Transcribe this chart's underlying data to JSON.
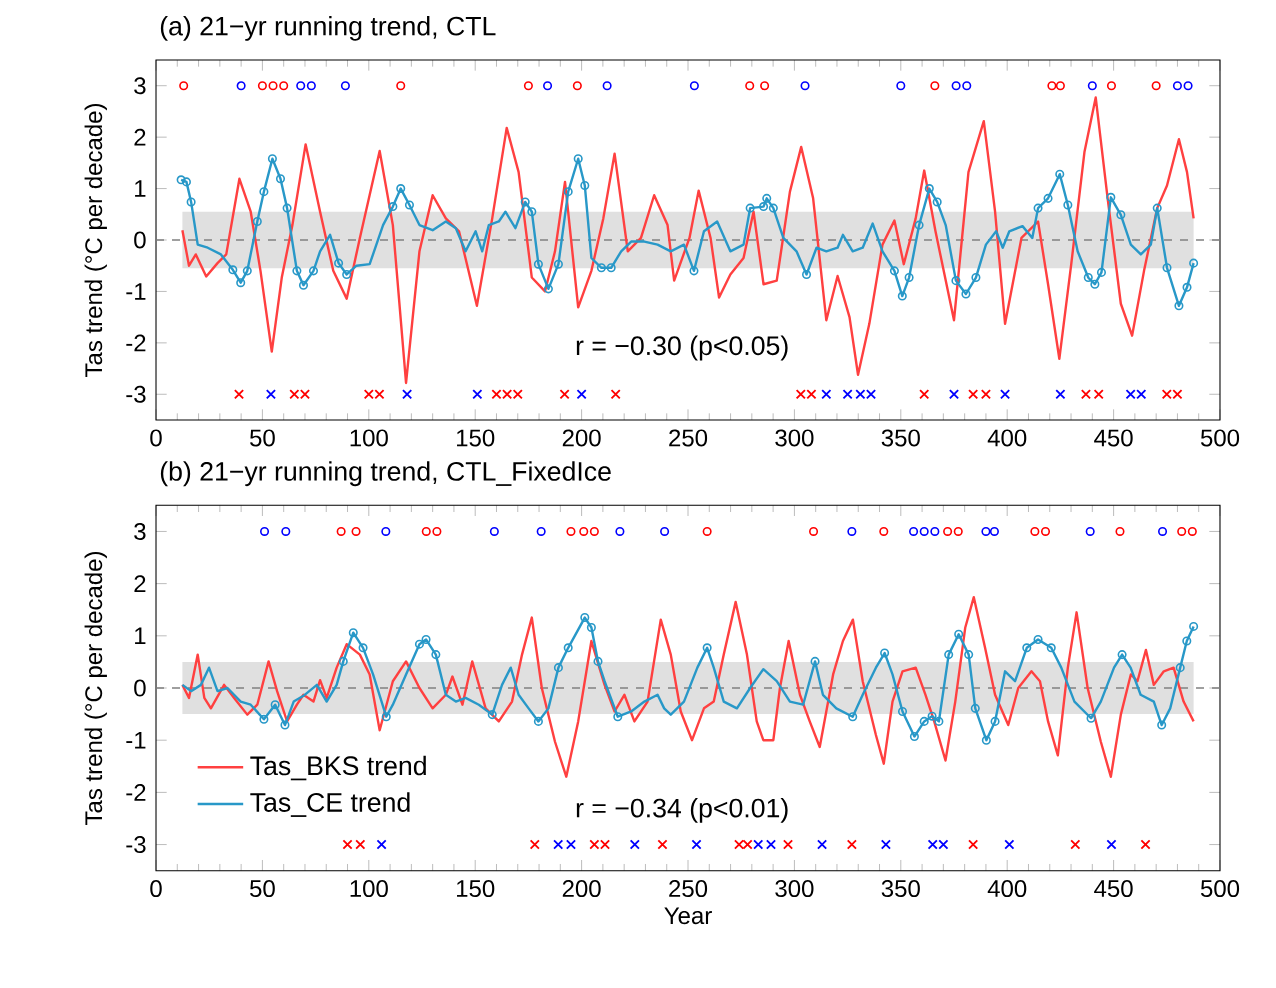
{
  "chart_data": [
    {
      "type": "line",
      "title": "(a) 21−yr running trend, CTL",
      "ylabel": "Tas trend (°C per decade)",
      "xlim": [
        0,
        500
      ],
      "ylim": [
        -3.5,
        3.5
      ],
      "xticks": [
        0,
        50,
        100,
        150,
        200,
        250,
        300,
        350,
        400,
        450,
        500
      ],
      "yticks": [
        -3,
        -2,
        -1,
        0,
        1,
        2,
        3
      ],
      "annotations": [
        "r = −0.30 (p<0.05)"
      ],
      "ref_lines": [
        {
          "axis": "y",
          "value": 0,
          "color": "#808080",
          "line_style": "dashed"
        }
      ],
      "bands": [
        {
          "axis": "y",
          "from": -0.55,
          "to": 0.55,
          "color": "#e0e0e0"
        }
      ],
      "series": [
        {
          "marker": "none",
          "color": "#ff4040",
          "x": [
            12.4,
            15.5,
            18.7,
            23.6,
            28.9,
            33.0,
            39.2,
            44.5,
            49.1,
            54.4,
            59.1,
            64.1,
            70.3,
            77.1,
            83.3,
            89.6,
            95.8,
            105.1,
            111.3,
            117.5,
            123.8,
            130.0,
            136.2,
            142.4,
            150.8,
            158.0,
            164.8,
            170.4,
            176.6,
            182.8,
            187.5,
            192.2,
            198.4,
            204.6,
            210.2,
            215.5,
            221.7,
            227.9,
            234.1,
            240.4,
            243.5,
            250.7,
            255.0,
            260.6,
            264.6,
            269.9,
            276.1,
            280.8,
            285.5,
            291.7,
            297.9,
            303.2,
            308.8,
            315.0,
            320.3,
            325.9,
            329.9,
            335.2,
            341.4,
            347.0,
            351.4,
            357.0,
            361.0,
            366.3,
            375.0,
            381.8,
            389.0,
            394.3,
            399.0,
            406.7,
            414.5,
            419.2,
            424.5,
            430.1,
            436.3,
            441.6,
            447.2,
            453.4,
            458.7,
            464.3,
            470.5,
            475.1,
            480.7,
            484.5,
            487.6
          ],
          "values": [
            0.19,
            -0.5,
            -0.28,
            -0.71,
            -0.45,
            -0.28,
            1.19,
            0.55,
            -0.6,
            -2.17,
            -0.73,
            0.29,
            1.86,
            0.55,
            -0.6,
            -1.14,
            0.04,
            1.73,
            0.29,
            -2.78,
            -0.22,
            0.87,
            0.42,
            0.17,
            -1.28,
            0.42,
            2.18,
            1.32,
            -0.73,
            -1.0,
            -0.22,
            1.13,
            -1.31,
            -0.6,
            0.42,
            1.68,
            -0.22,
            0.04,
            0.87,
            0.29,
            -0.79,
            0.04,
            0.96,
            0.04,
            -1.12,
            -0.67,
            -0.35,
            0.55,
            -0.86,
            -0.79,
            0.94,
            1.81,
            0.81,
            -1.56,
            -0.7,
            -1.5,
            -2.62,
            -1.63,
            -0.09,
            0.38,
            -0.47,
            0.42,
            1.35,
            0.17,
            -1.56,
            1.32,
            2.31,
            0.55,
            -1.63,
            0.04,
            0.36,
            -0.86,
            -2.31,
            -0.47,
            1.71,
            2.77,
            0.81,
            -1.24,
            -1.86,
            -0.6,
            0.62,
            1.06,
            1.96,
            1.32,
            0.42
          ]
        },
        {
          "marker": "none",
          "color": "#2898c8",
          "x": [
            11.8,
            14.3,
            16.5,
            19.6,
            24.3,
            30.5,
            36.1,
            39.8,
            42.9,
            47.6,
            50.7,
            54.7,
            58.5,
            61.6,
            66.2,
            69.3,
            74.0,
            77.1,
            81.8,
            85.8,
            89.6,
            94.2,
            100.4,
            106.7,
            111.3,
            115.0,
            119.1,
            123.8,
            130.0,
            136.2,
            140.9,
            145.5,
            150.2,
            153.3,
            156.4,
            161.1,
            164.2,
            168.9,
            173.5,
            176.6,
            179.7,
            184.4,
            189.1,
            193.7,
            198.4,
            201.5,
            204.6,
            209.3,
            213.9,
            218.6,
            223.3,
            229.5,
            235.7,
            241.9,
            248.1,
            252.8,
            257.5,
            263.7,
            269.9,
            276.1,
            279.2,
            285.5,
            287.0,
            290.1,
            294.8,
            301.0,
            305.7,
            310.4,
            315.0,
            320.3,
            322.8,
            327.4,
            332.1,
            336.8,
            341.4,
            347.0,
            350.7,
            353.9,
            358.6,
            363.4,
            367.1,
            371.1,
            375.9,
            380.6,
            385.3,
            390.0,
            394.8,
            397.9,
            401.0,
            407.2,
            411.8,
            414.5,
            419.2,
            424.7,
            428.5,
            433.1,
            438.1,
            441.2,
            444.3,
            448.7,
            453.4,
            458.1,
            462.8,
            467.5,
            470.5,
            475.1,
            480.7,
            484.5,
            487.6
          ],
          "values": [
            1.17,
            1.13,
            0.74,
            -0.09,
            -0.15,
            -0.28,
            -0.58,
            -0.83,
            -0.6,
            0.36,
            0.94,
            1.58,
            1.19,
            0.62,
            -0.6,
            -0.88,
            -0.6,
            -0.22,
            0.1,
            -0.45,
            -0.67,
            -0.5,
            -0.47,
            0.29,
            0.65,
            1.0,
            0.68,
            0.29,
            0.19,
            0.36,
            0.23,
            -0.22,
            0.17,
            -0.22,
            0.29,
            0.36,
            0.55,
            0.23,
            0.74,
            0.55,
            -0.47,
            -0.95,
            -0.47,
            0.94,
            1.58,
            1.06,
            -0.35,
            -0.54,
            -0.54,
            -0.22,
            -0.03,
            -0.03,
            -0.09,
            -0.22,
            -0.09,
            -0.6,
            0.17,
            0.36,
            -0.22,
            -0.09,
            0.62,
            0.65,
            0.81,
            0.62,
            0.04,
            -0.22,
            -0.67,
            -0.15,
            -0.22,
            -0.15,
            0.1,
            -0.22,
            -0.15,
            0.32,
            -0.22,
            -0.6,
            -1.09,
            -0.73,
            0.29,
            1.0,
            0.74,
            0.29,
            -0.79,
            -1.05,
            -0.73,
            -0.09,
            0.17,
            -0.15,
            0.17,
            0.27,
            0.04,
            0.62,
            0.81,
            1.28,
            0.68,
            -0.22,
            -0.73,
            -0.86,
            -0.63,
            0.83,
            0.49,
            -0.09,
            -0.28,
            -0.09,
            0.62,
            -0.54,
            -1.28,
            -0.92,
            -0.45
          ]
        },
        {
          "type": "scatter",
          "marker": "circle",
          "color": "#2898c8",
          "x": [
            11.8,
            14.3,
            16.5,
            36.1,
            39.8,
            42.9,
            47.6,
            50.7,
            54.7,
            58.5,
            61.6,
            66.2,
            69.3,
            74.0,
            85.8,
            89.6,
            111.3,
            115.0,
            119.1,
            173.5,
            176.6,
            179.7,
            184.4,
            189.1,
            193.7,
            198.4,
            201.5,
            209.3,
            213.9,
            252.8,
            279.2,
            285.5,
            287.0,
            290.1,
            305.7,
            347.0,
            350.7,
            353.9,
            358.6,
            363.4,
            367.1,
            375.9,
            380.6,
            385.3,
            414.5,
            419.2,
            424.7,
            428.5,
            438.1,
            441.2,
            444.3,
            448.7,
            453.4,
            470.5,
            475.1,
            480.7,
            484.5,
            487.6
          ],
          "values": [
            1.17,
            1.13,
            0.74,
            -0.58,
            -0.83,
            -0.6,
            0.36,
            0.94,
            1.58,
            1.19,
            0.62,
            -0.6,
            -0.88,
            -0.6,
            -0.45,
            -0.67,
            0.65,
            1.0,
            0.68,
            0.74,
            0.55,
            -0.47,
            -0.95,
            -0.47,
            0.94,
            1.58,
            1.06,
            -0.54,
            -0.54,
            -0.6,
            0.62,
            0.65,
            0.81,
            0.62,
            -0.67,
            -0.6,
            -1.09,
            -0.73,
            0.29,
            1.0,
            0.74,
            -0.79,
            -1.05,
            -0.73,
            0.62,
            0.81,
            1.28,
            0.68,
            -0.73,
            -0.86,
            -0.63,
            0.83,
            0.49,
            0.62,
            -0.54,
            -1.28,
            -0.92,
            -0.45
          ]
        },
        {
          "type": "scatter",
          "marker": "circle",
          "color": "#ff0000",
          "x": [
            13,
            50,
            55,
            60,
            115,
            175,
            198,
            279,
            286,
            366,
            421,
            425,
            449,
            470
          ],
          "values": [
            3,
            3,
            3,
            3,
            3,
            3,
            3,
            3,
            3,
            3,
            3,
            3,
            3,
            3
          ]
        },
        {
          "type": "scatter",
          "marker": "circle",
          "color": "#0000ff",
          "x": [
            40,
            68,
            73,
            89,
            184,
            212,
            253,
            305,
            350,
            376,
            381,
            440,
            480,
            485
          ],
          "values": [
            3,
            3,
            3,
            3,
            3,
            3,
            3,
            3,
            3,
            3,
            3,
            3,
            3,
            3
          ]
        },
        {
          "type": "scatter",
          "marker": "cross",
          "color": "#ff0000",
          "x": [
            39,
            65,
            70,
            100,
            105,
            160,
            165,
            170,
            192,
            216,
            303,
            308,
            361,
            384,
            390,
            437,
            443,
            475,
            480
          ],
          "values": [
            -3,
            -3,
            -3,
            -3,
            -3,
            -3,
            -3,
            -3,
            -3,
            -3,
            -3,
            -3,
            -3,
            -3,
            -3,
            -3,
            -3,
            -3,
            -3
          ]
        },
        {
          "type": "scatter",
          "marker": "cross",
          "color": "#0000ff",
          "x": [
            54,
            118,
            151,
            200,
            315,
            325,
            331,
            336,
            375,
            399,
            425,
            458,
            463
          ],
          "values": [
            -3,
            -3,
            -3,
            -3,
            -3,
            -3,
            -3,
            -3,
            -3,
            -3,
            -3,
            -3,
            -3
          ]
        }
      ]
    },
    {
      "type": "line",
      "title": "(b) 21−yr running trend, CTL_FixedIce",
      "xlabel": "Year",
      "ylabel": "Tas trend (°C per decade)",
      "xlim": [
        0,
        500
      ],
      "ylim": [
        -3.5,
        3.5
      ],
      "xticks": [
        0,
        50,
        100,
        150,
        200,
        250,
        300,
        350,
        400,
        450,
        500
      ],
      "yticks": [
        -3,
        -2,
        -1,
        0,
        1,
        2,
        3
      ],
      "annotations": [
        "r = −0.34 (p<0.01)"
      ],
      "ref_lines": [
        {
          "axis": "y",
          "value": 0,
          "color": "#808080",
          "line_style": "dashed"
        }
      ],
      "bands": [
        {
          "axis": "y",
          "from": -0.5,
          "to": 0.5,
          "color": "#e0e0e0"
        }
      ],
      "legend": "bottom left",
      "series": [
        {
          "name": "Tas_BKS trend",
          "marker": "none",
          "color": "#ff4040",
          "x": [
            12.4,
            15.5,
            19.6,
            22.7,
            25.8,
            32.0,
            36.7,
            42.9,
            47.6,
            52.9,
            56.9,
            61.6,
            66.2,
            69.3,
            74.0,
            77.1,
            80.2,
            84.9,
            89.6,
            95.8,
            100.4,
            105.1,
            111.3,
            117.5,
            123.8,
            130.0,
            136.2,
            139.3,
            144.0,
            148.6,
            154.9,
            161.1,
            167.3,
            172.0,
            176.6,
            181.3,
            187.5,
            192.8,
            198.4,
            204.6,
            210.8,
            215.5,
            220.1,
            224.8,
            231.0,
            237.2,
            241.9,
            246.6,
            251.9,
            257.5,
            262.1,
            266.8,
            272.4,
            277.7,
            282.3,
            285.4,
            290.1,
            293.2,
            297.3,
            302.6,
            307.2,
            311.9,
            318.2,
            322.8,
            327.5,
            332.1,
            338.3,
            342.0,
            346.1,
            350.8,
            357.0,
            361.6,
            365.7,
            371.0,
            375.6,
            380.3,
            384.3,
            389.6,
            394.3,
            400.5,
            405.2,
            411.4,
            415.4,
            419.2,
            423.8,
            428.5,
            432.6,
            437.8,
            444.0,
            448.7,
            453.4,
            458.1,
            461.2,
            465.2,
            468.9,
            473.6,
            478.2,
            482.9,
            487.6
          ],
          "values": [
            0.06,
            -0.19,
            0.64,
            -0.19,
            -0.39,
            0.06,
            -0.19,
            -0.51,
            -0.32,
            0.51,
            -0.06,
            -0.64,
            -0.32,
            -0.13,
            -0.26,
            0.15,
            -0.19,
            0.39,
            0.84,
            0.64,
            0.26,
            -0.81,
            0.13,
            0.51,
            0.0,
            -0.39,
            -0.13,
            0.22,
            -0.32,
            0.51,
            -0.39,
            -0.64,
            -0.26,
            0.64,
            1.35,
            0.0,
            -1.03,
            -1.7,
            -0.64,
            0.9,
            0.06,
            -0.45,
            -0.13,
            -0.64,
            -0.26,
            1.31,
            0.64,
            -0.45,
            -1.0,
            -0.39,
            -0.26,
            0.64,
            1.65,
            0.64,
            -0.64,
            -1.0,
            -1.0,
            0.0,
            0.9,
            -0.13,
            -0.64,
            -1.13,
            0.26,
            0.9,
            1.31,
            0.13,
            -0.9,
            -1.45,
            -0.26,
            0.32,
            0.39,
            -0.13,
            -0.64,
            -1.39,
            -0.26,
            1.16,
            1.74,
            0.77,
            -0.13,
            -0.71,
            0.0,
            0.32,
            0.13,
            -0.64,
            -1.29,
            0.39,
            1.45,
            0.0,
            -1.03,
            -1.7,
            -0.51,
            0.26,
            0.13,
            0.73,
            0.06,
            0.32,
            0.39,
            -0.26,
            -0.64
          ]
        },
        {
          "name": "Tas_CE trend",
          "marker": "none",
          "color": "#2898c8",
          "x": [
            12.4,
            16.5,
            21.1,
            24.9,
            28.9,
            33.6,
            39.8,
            44.5,
            50.7,
            56.0,
            60.6,
            64.7,
            69.3,
            75.6,
            80.2,
            84.9,
            88.0,
            92.7,
            97.3,
            102.0,
            108.2,
            111.3,
            117.5,
            123.8,
            126.9,
            131.5,
            136.2,
            140.9,
            145.5,
            151.7,
            158.0,
            162.6,
            166.7,
            170.4,
            175.1,
            179.7,
            184.4,
            189.1,
            193.7,
            201.5,
            204.6,
            207.7,
            210.8,
            217.0,
            223.3,
            229.5,
            235.7,
            238.8,
            241.9,
            248.1,
            254.4,
            259.0,
            262.1,
            266.8,
            273.0,
            279.2,
            285.4,
            291.7,
            297.9,
            304.1,
            309.7,
            313.4,
            319.7,
            327.4,
            332.1,
            338.3,
            342.4,
            346.1,
            350.8,
            356.4,
            361.0,
            364.7,
            367.9,
            372.5,
            377.2,
            381.9,
            385.0,
            390.2,
            394.3,
            399.0,
            403.7,
            409.2,
            414.5,
            420.7,
            425.4,
            431.6,
            439.4,
            444.0,
            450.2,
            454.0,
            458.0,
            462.7,
            468.9,
            472.6,
            476.6,
            481.3,
            484.4,
            487.6
          ],
          "values": [
            0.06,
            -0.06,
            0.06,
            0.39,
            -0.06,
            0.0,
            -0.26,
            -0.32,
            -0.6,
            -0.32,
            -0.71,
            -0.26,
            -0.15,
            0.06,
            -0.26,
            0.06,
            0.51,
            1.06,
            0.77,
            0.26,
            -0.55,
            -0.32,
            0.26,
            0.84,
            0.93,
            0.64,
            -0.13,
            -0.26,
            -0.19,
            -0.32,
            -0.51,
            0.06,
            0.39,
            -0.13,
            -0.39,
            -0.64,
            -0.39,
            0.39,
            0.77,
            1.35,
            1.16,
            0.51,
            0.13,
            -0.55,
            -0.45,
            -0.26,
            -0.13,
            -0.39,
            -0.51,
            -0.26,
            0.39,
            0.77,
            0.39,
            -0.26,
            -0.39,
            0.0,
            0.36,
            0.13,
            -0.26,
            -0.32,
            0.51,
            -0.13,
            -0.39,
            -0.55,
            -0.13,
            0.39,
            0.67,
            0.26,
            -0.45,
            -0.93,
            -0.64,
            -0.54,
            -0.64,
            0.64,
            1.03,
            0.64,
            -0.39,
            -1.0,
            -0.64,
            0.32,
            0.13,
            0.77,
            0.93,
            0.77,
            0.39,
            -0.26,
            -0.58,
            -0.26,
            0.39,
            0.64,
            0.39,
            -0.13,
            -0.26,
            -0.71,
            -0.39,
            0.39,
            0.9,
            1.18
          ]
        },
        {
          "type": "scatter",
          "marker": "circle",
          "color": "#2898c8",
          "x": [
            50.7,
            56.0,
            60.6,
            88.0,
            92.7,
            97.3,
            108.2,
            123.8,
            126.9,
            131.5,
            158.0,
            179.7,
            189.1,
            193.7,
            201.5,
            204.6,
            207.7,
            217.0,
            259.0,
            309.7,
            327.4,
            342.4,
            350.8,
            356.4,
            361.0,
            364.7,
            367.9,
            372.5,
            377.2,
            381.9,
            385.0,
            390.2,
            394.3,
            409.2,
            414.5,
            420.7,
            439.4,
            454.0,
            472.6,
            481.3,
            484.4,
            487.6
          ],
          "values": [
            -0.6,
            -0.32,
            -0.71,
            0.51,
            1.06,
            0.77,
            -0.55,
            0.84,
            0.93,
            0.64,
            -0.51,
            -0.64,
            0.39,
            0.77,
            1.35,
            1.16,
            0.51,
            -0.55,
            0.77,
            0.51,
            -0.55,
            0.67,
            -0.45,
            -0.93,
            -0.64,
            -0.54,
            -0.64,
            0.64,
            1.03,
            0.64,
            -0.39,
            -1.0,
            -0.64,
            0.77,
            0.93,
            0.77,
            -0.58,
            0.64,
            -0.71,
            0.39,
            0.9,
            1.18
          ]
        },
        {
          "type": "scatter",
          "marker": "circle",
          "color": "#ff0000",
          "x": [
            87,
            94,
            127,
            132,
            195,
            201,
            206,
            259,
            309,
            342,
            372,
            377,
            413,
            418,
            453,
            482,
            487
          ],
          "values": [
            3,
            3,
            3,
            3,
            3,
            3,
            3,
            3,
            3,
            3,
            3,
            3,
            3,
            3,
            3,
            3,
            3
          ]
        },
        {
          "type": "scatter",
          "marker": "circle",
          "color": "#0000ff",
          "x": [
            51,
            61,
            108,
            159,
            181,
            218,
            239,
            327,
            356,
            361,
            366,
            390,
            394,
            439,
            473
          ],
          "values": [
            3,
            3,
            3,
            3,
            3,
            3,
            3,
            3,
            3,
            3,
            3,
            3,
            3,
            3,
            3
          ]
        },
        {
          "type": "scatter",
          "marker": "cross",
          "color": "#ff0000",
          "x": [
            90,
            96,
            178,
            206,
            211,
            238,
            274,
            278,
            297,
            327,
            384,
            432,
            465
          ],
          "values": [
            -3,
            -3,
            -3,
            -3,
            -3,
            -3,
            -3,
            -3,
            -3,
            -3,
            -3,
            -3,
            -3
          ]
        },
        {
          "type": "scatter",
          "marker": "cross",
          "color": "#0000ff",
          "x": [
            106,
            189,
            195,
            225,
            254,
            283,
            289,
            313,
            343,
            365,
            370,
            401,
            449
          ],
          "values": [
            -3,
            -3,
            -3,
            -3,
            -3,
            -3,
            -3,
            -3,
            -3,
            -3,
            -3,
            -3,
            -3
          ]
        }
      ]
    }
  ]
}
